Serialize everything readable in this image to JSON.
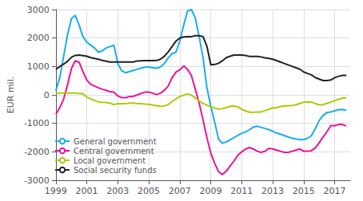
{
  "chart_data": {
    "type": "line",
    "ylabel": "EUR mil.",
    "x": [
      1999.0,
      1999.25,
      1999.5,
      1999.75,
      2000.0,
      2000.25,
      2000.5,
      2000.75,
      2001.0,
      2001.25,
      2001.5,
      2001.75,
      2002.0,
      2002.25,
      2002.5,
      2002.75,
      2003.0,
      2003.25,
      2003.5,
      2003.75,
      2004.0,
      2004.25,
      2004.5,
      2004.75,
      2005.0,
      2005.25,
      2005.5,
      2005.75,
      2006.0,
      2006.25,
      2006.5,
      2006.75,
      2007.0,
      2007.25,
      2007.5,
      2007.75,
      2008.0,
      2008.25,
      2008.5,
      2008.75,
      2009.0,
      2009.25,
      2009.5,
      2009.75,
      2010.0,
      2010.25,
      2010.5,
      2010.75,
      2011.0,
      2011.25,
      2011.5,
      2011.75,
      2012.0,
      2012.25,
      2012.5,
      2012.75,
      2013.0,
      2013.25,
      2013.5,
      2013.75,
      2014.0,
      2014.25,
      2014.5,
      2014.75,
      2015.0,
      2015.25,
      2015.5,
      2015.75,
      2016.0,
      2016.25,
      2016.5,
      2016.75,
      2017.0,
      2017.25,
      2017.5,
      2017.75
    ],
    "xlim": [
      1999,
      2018.0
    ],
    "xticks": [
      1999,
      2001,
      2003,
      2005,
      2007,
      2009,
      2011,
      2013,
      2015,
      2017
    ],
    "ylim": [
      -3000,
      3000
    ],
    "yticks": [
      -3000,
      -2000,
      -1000,
      0,
      1000,
      2000,
      3000
    ],
    "grid": true,
    "legend": "lower left",
    "series": [
      {
        "name": "General government",
        "color": "#1aadee",
        "values": [
          150,
          600,
          1350,
          2100,
          2680,
          2800,
          2450,
          2050,
          1850,
          1750,
          1650,
          1500,
          1550,
          1650,
          1700,
          1750,
          1100,
          850,
          780,
          820,
          860,
          900,
          940,
          980,
          980,
          950,
          940,
          980,
          1100,
          1300,
          1450,
          1500,
          1900,
          2450,
          2950,
          3000,
          2700,
          2050,
          1300,
          250,
          -400,
          -950,
          -1550,
          -1700,
          -1650,
          -1580,
          -1500,
          -1420,
          -1350,
          -1300,
          -1220,
          -1130,
          -1100,
          -1140,
          -1180,
          -1220,
          -1280,
          -1340,
          -1380,
          -1430,
          -1480,
          -1520,
          -1550,
          -1570,
          -1570,
          -1520,
          -1430,
          -1180,
          -900,
          -720,
          -620,
          -600,
          -560,
          -520,
          -510,
          -540
        ]
      },
      {
        "name": "Central government",
        "color": "#ee1199",
        "values": [
          -680,
          -450,
          -150,
          350,
          920,
          1200,
          1150,
          820,
          520,
          370,
          310,
          250,
          200,
          160,
          110,
          100,
          -40,
          -90,
          -100,
          -60,
          -50,
          0,
          50,
          100,
          100,
          60,
          10,
          60,
          160,
          310,
          600,
          800,
          880,
          1020,
          900,
          680,
          200,
          -290,
          -880,
          -1500,
          -2050,
          -2400,
          -2700,
          -2800,
          -2680,
          -2500,
          -2320,
          -2120,
          -2000,
          -1900,
          -1850,
          -1900,
          -1980,
          -2020,
          -1980,
          -1880,
          -1900,
          -1940,
          -1980,
          -2020,
          -2020,
          -1980,
          -1940,
          -1900,
          -1980,
          -1980,
          -1960,
          -1860,
          -1680,
          -1480,
          -1290,
          -1080,
          -1080,
          -1040,
          -1040,
          -1090
        ]
      },
      {
        "name": "Local government",
        "color": "#aacc00",
        "values": [
          60,
          60,
          60,
          60,
          60,
          60,
          50,
          40,
          -80,
          -140,
          -200,
          -250,
          -260,
          -265,
          -290,
          -340,
          -310,
          -310,
          -305,
          -285,
          -285,
          -300,
          -305,
          -320,
          -330,
          -360,
          -380,
          -400,
          -390,
          -340,
          -240,
          -140,
          -60,
          -10,
          40,
          -10,
          -110,
          -210,
          -300,
          -360,
          -410,
          -460,
          -500,
          -480,
          -450,
          -400,
          -390,
          -410,
          -510,
          -560,
          -610,
          -610,
          -605,
          -600,
          -550,
          -505,
          -455,
          -450,
          -405,
          -385,
          -380,
          -375,
          -345,
          -300,
          -255,
          -255,
          -255,
          -305,
          -350,
          -345,
          -295,
          -250,
          -200,
          -155,
          -110,
          -105
        ]
      },
      {
        "name": "Social security funds",
        "color": "#222222",
        "values": [
          900,
          1000,
          1080,
          1180,
          1320,
          1390,
          1400,
          1380,
          1360,
          1310,
          1285,
          1255,
          1210,
          1185,
          1155,
          1155,
          1155,
          1155,
          1155,
          1155,
          1155,
          1195,
          1200,
          1205,
          1205,
          1205,
          1210,
          1255,
          1355,
          1510,
          1700,
          1890,
          2000,
          2040,
          2050,
          2050,
          2080,
          2080,
          2050,
          1710,
          1060,
          1070,
          1110,
          1200,
          1310,
          1360,
          1400,
          1405,
          1405,
          1385,
          1355,
          1355,
          1355,
          1335,
          1305,
          1285,
          1255,
          1205,
          1155,
          1105,
          1055,
          1005,
          955,
          905,
          805,
          755,
          705,
          610,
          555,
          505,
          505,
          525,
          605,
          655,
          685,
          685
        ]
      }
    ]
  }
}
